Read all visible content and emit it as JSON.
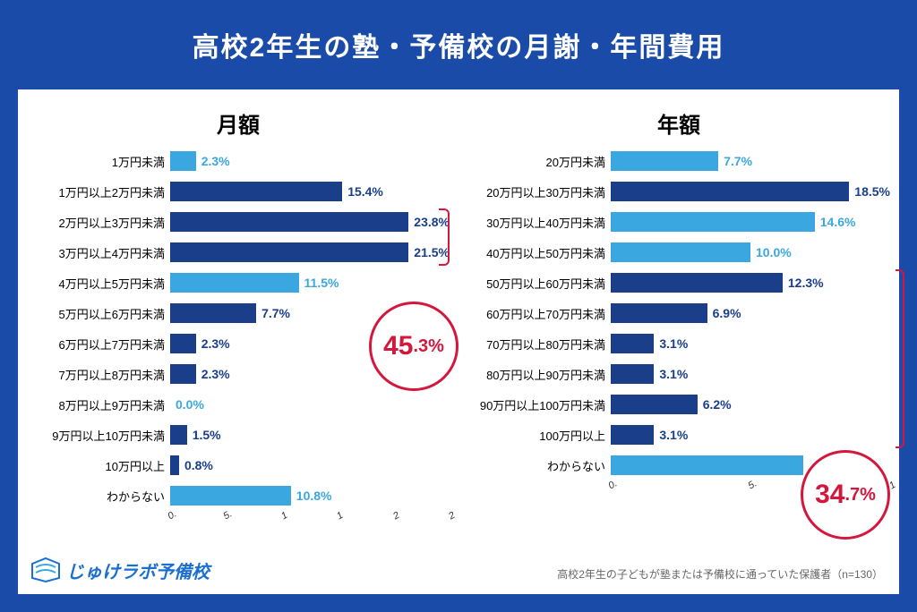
{
  "title": "高校2年生の塾・予備校の月謝・年間費用",
  "colors": {
    "frame_bg": "#1a4ba8",
    "panel_bg": "#ffffff",
    "light_blue": "#3aa7e0",
    "dark_blue": "#1a3e8a",
    "accent_red": "#d4183d",
    "logo_blue": "#1a6fd1",
    "footnote_gray": "#666666"
  },
  "monthly": {
    "title": "月額",
    "max": 25,
    "ticks": [
      "0.",
      "5.",
      "1",
      "1",
      "2",
      "2"
    ],
    "bars": [
      {
        "label": "1万円未満",
        "value": 2.3,
        "text": "2.3%",
        "color": "#3aa7e0"
      },
      {
        "label": "1万円以上2万円未満",
        "value": 15.4,
        "text": "15.4%",
        "color": "#1a3e8a"
      },
      {
        "label": "2万円以上3万円未満",
        "value": 23.8,
        "text": "23.8%",
        "color": "#1a3e8a"
      },
      {
        "label": "3万円以上4万円未満",
        "value": 21.5,
        "text": "21.5%",
        "color": "#1a3e8a"
      },
      {
        "label": "4万円以上5万円未満",
        "value": 11.5,
        "text": "11.5%",
        "color": "#3aa7e0"
      },
      {
        "label": "5万円以上6万円未満",
        "value": 7.7,
        "text": "7.7%",
        "color": "#1a3e8a"
      },
      {
        "label": "6万円以上7万円未満",
        "value": 2.3,
        "text": "2.3%",
        "color": "#1a3e8a"
      },
      {
        "label": "7万円以上8万円未満",
        "value": 2.3,
        "text": "2.3%",
        "color": "#1a3e8a"
      },
      {
        "label": "8万円以上9万円未満",
        "value": 0.0,
        "text": "0.0%",
        "color": "#3aa7e0"
      },
      {
        "label": "9万円以上10万円未満",
        "value": 1.5,
        "text": "1.5%",
        "color": "#1a3e8a"
      },
      {
        "label": "10万円以上",
        "value": 0.8,
        "text": "0.8%",
        "color": "#1a3e8a"
      },
      {
        "label": "わからない",
        "value": 10.8,
        "text": "10.8%",
        "color": "#3aa7e0"
      }
    ],
    "callout": {
      "big": "45",
      "small": ".3%"
    },
    "bracket_rows": [
      2,
      3
    ]
  },
  "annual": {
    "title": "年額",
    "max": 20,
    "ticks": [
      "0.",
      "5.",
      "1"
    ],
    "bars": [
      {
        "label": "20万円未満",
        "value": 7.7,
        "text": "7.7%",
        "color": "#3aa7e0"
      },
      {
        "label": "20万円以上30万円未満",
        "value": 18.5,
        "text": "18.5%",
        "color": "#1a3e8a"
      },
      {
        "label": "30万円以上40万円未満",
        "value": 14.6,
        "text": "14.6%",
        "color": "#3aa7e0"
      },
      {
        "label": "40万円以上50万円未満",
        "value": 10.0,
        "text": "10.0%",
        "color": "#3aa7e0"
      },
      {
        "label": "50万円以上60万円未満",
        "value": 12.3,
        "text": "12.3%",
        "color": "#1a3e8a"
      },
      {
        "label": "60万円以上70万円未満",
        "value": 6.9,
        "text": "6.9%",
        "color": "#1a3e8a"
      },
      {
        "label": "70万円以上80万円未満",
        "value": 3.1,
        "text": "3.1%",
        "color": "#1a3e8a"
      },
      {
        "label": "80万円以上90万円未満",
        "value": 3.1,
        "text": "3.1%",
        "color": "#1a3e8a"
      },
      {
        "label": "90万円以上100万円未満",
        "value": 6.2,
        "text": "6.2%",
        "color": "#1a3e8a"
      },
      {
        "label": "100万円以上",
        "value": 3.1,
        "text": "3.1%",
        "color": "#1a3e8a"
      },
      {
        "label": "わからない",
        "value": 13.8,
        "text": "",
        "color": "#3aa7e0"
      }
    ],
    "callout": {
      "big": "34",
      "small": ".7%"
    },
    "bracket_rows": [
      4,
      9
    ]
  },
  "logo_text": "じゅけラボ予備校",
  "footnote": "高校2年生の子どもが塾または予備校に通っていた保護者（n=130）"
}
